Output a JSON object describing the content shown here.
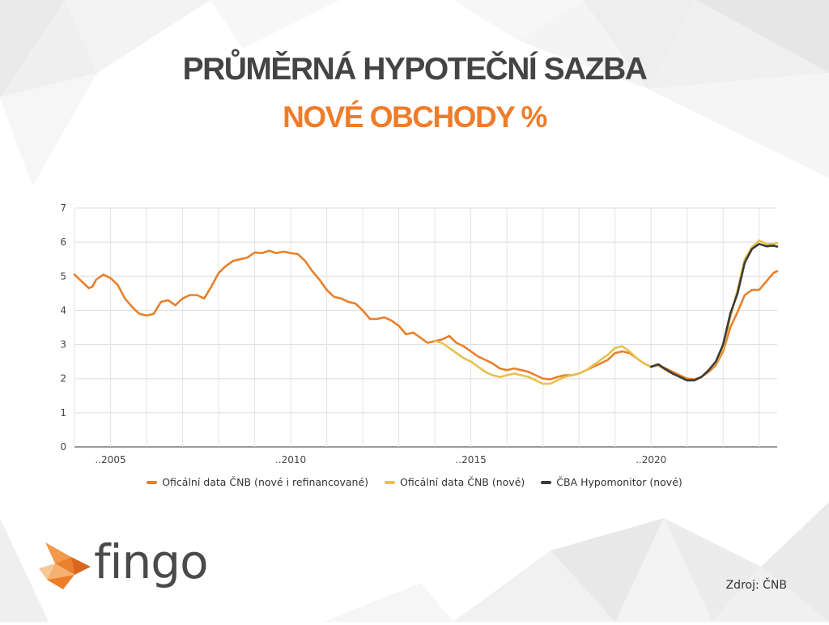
{
  "title_line1": "PRŮMĚRNÁ HYPOTEČNÍ SAZBA",
  "title_line2": "NOVÉ OBCHODY  %",
  "source": "Zdroj: ČNB",
  "logo_text": "fingo",
  "colors": {
    "title_dark": "#444444",
    "accent_orange": "#ee7d2b",
    "series_orange": "#e8802c",
    "series_yellow": "#e6c24a",
    "series_dark": "#3a3a3a"
  },
  "chart_data": {
    "type": "line",
    "title": "",
    "xlabel": "",
    "ylabel": "",
    "x_ticks": [
      2005,
      2010,
      2015,
      2020
    ],
    "x_tick_labels": [
      "..2005",
      "..2010",
      "..2015",
      "..2020"
    ],
    "y_ticks": [
      0,
      1,
      2,
      3,
      4,
      5,
      6,
      7
    ],
    "xlim": [
      2004.0,
      2023.5
    ],
    "ylim": [
      0,
      7
    ],
    "grid": true,
    "legend_position": "bottom",
    "series": [
      {
        "name": "Oficální data ČNB (nové i refinancované)",
        "color": "#e8802c",
        "points": [
          [
            2004.0,
            5.05
          ],
          [
            2004.2,
            4.85
          ],
          [
            2004.4,
            4.65
          ],
          [
            2004.5,
            4.7
          ],
          [
            2004.6,
            4.9
          ],
          [
            2004.8,
            5.05
          ],
          [
            2005.0,
            4.95
          ],
          [
            2005.2,
            4.75
          ],
          [
            2005.4,
            4.35
          ],
          [
            2005.6,
            4.1
          ],
          [
            2005.8,
            3.9
          ],
          [
            2006.0,
            3.85
          ],
          [
            2006.2,
            3.9
          ],
          [
            2006.4,
            4.25
          ],
          [
            2006.6,
            4.3
          ],
          [
            2006.8,
            4.15
          ],
          [
            2007.0,
            4.35
          ],
          [
            2007.2,
            4.45
          ],
          [
            2007.4,
            4.45
          ],
          [
            2007.6,
            4.35
          ],
          [
            2007.8,
            4.7
          ],
          [
            2008.0,
            5.1
          ],
          [
            2008.2,
            5.3
          ],
          [
            2008.4,
            5.45
          ],
          [
            2008.6,
            5.5
          ],
          [
            2008.8,
            5.55
          ],
          [
            2009.0,
            5.7
          ],
          [
            2009.2,
            5.68
          ],
          [
            2009.4,
            5.75
          ],
          [
            2009.6,
            5.68
          ],
          [
            2009.8,
            5.72
          ],
          [
            2010.0,
            5.68
          ],
          [
            2010.2,
            5.65
          ],
          [
            2010.4,
            5.45
          ],
          [
            2010.6,
            5.15
          ],
          [
            2010.8,
            4.9
          ],
          [
            2011.0,
            4.6
          ],
          [
            2011.2,
            4.4
          ],
          [
            2011.4,
            4.35
          ],
          [
            2011.6,
            4.25
          ],
          [
            2011.8,
            4.2
          ],
          [
            2012.0,
            4.0
          ],
          [
            2012.2,
            3.75
          ],
          [
            2012.4,
            3.75
          ],
          [
            2012.6,
            3.8
          ],
          [
            2012.8,
            3.7
          ],
          [
            2013.0,
            3.55
          ],
          [
            2013.2,
            3.3
          ],
          [
            2013.4,
            3.35
          ],
          [
            2013.6,
            3.2
          ],
          [
            2013.8,
            3.05
          ],
          [
            2014.0,
            3.1
          ],
          [
            2014.2,
            3.15
          ],
          [
            2014.4,
            3.25
          ],
          [
            2014.6,
            3.05
          ],
          [
            2014.8,
            2.95
          ],
          [
            2015.0,
            2.8
          ],
          [
            2015.2,
            2.65
          ],
          [
            2015.4,
            2.55
          ],
          [
            2015.6,
            2.45
          ],
          [
            2015.8,
            2.3
          ],
          [
            2016.0,
            2.25
          ],
          [
            2016.2,
            2.3
          ],
          [
            2016.4,
            2.25
          ],
          [
            2016.6,
            2.2
          ],
          [
            2016.8,
            2.1
          ],
          [
            2017.0,
            2.0
          ],
          [
            2017.2,
            1.98
          ],
          [
            2017.4,
            2.05
          ],
          [
            2017.6,
            2.1
          ],
          [
            2017.8,
            2.1
          ],
          [
            2018.0,
            2.15
          ],
          [
            2018.2,
            2.25
          ],
          [
            2018.4,
            2.35
          ],
          [
            2018.6,
            2.45
          ],
          [
            2018.8,
            2.55
          ],
          [
            2019.0,
            2.75
          ],
          [
            2019.2,
            2.8
          ],
          [
            2019.4,
            2.75
          ],
          [
            2019.6,
            2.6
          ],
          [
            2019.8,
            2.45
          ],
          [
            2020.0,
            2.35
          ],
          [
            2020.2,
            2.4
          ],
          [
            2020.4,
            2.3
          ],
          [
            2020.6,
            2.2
          ],
          [
            2020.8,
            2.1
          ],
          [
            2021.0,
            2.0
          ],
          [
            2021.2,
            1.98
          ],
          [
            2021.4,
            2.05
          ],
          [
            2021.6,
            2.2
          ],
          [
            2021.8,
            2.4
          ],
          [
            2022.0,
            2.8
          ],
          [
            2022.2,
            3.5
          ],
          [
            2022.4,
            3.95
          ],
          [
            2022.6,
            4.45
          ],
          [
            2022.8,
            4.6
          ],
          [
            2023.0,
            4.6
          ],
          [
            2023.2,
            4.85
          ],
          [
            2023.4,
            5.1
          ],
          [
            2023.5,
            5.15
          ]
        ]
      },
      {
        "name": "Oficální data ČNB (nové)",
        "color": "#e6c24a",
        "points": [
          [
            2014.0,
            3.1
          ],
          [
            2014.2,
            3.05
          ],
          [
            2014.4,
            2.9
          ],
          [
            2014.6,
            2.75
          ],
          [
            2014.8,
            2.6
          ],
          [
            2015.0,
            2.5
          ],
          [
            2015.2,
            2.35
          ],
          [
            2015.4,
            2.2
          ],
          [
            2015.6,
            2.1
          ],
          [
            2015.8,
            2.05
          ],
          [
            2016.0,
            2.1
          ],
          [
            2016.2,
            2.15
          ],
          [
            2016.4,
            2.1
          ],
          [
            2016.6,
            2.05
          ],
          [
            2016.8,
            1.95
          ],
          [
            2017.0,
            1.85
          ],
          [
            2017.2,
            1.85
          ],
          [
            2017.4,
            1.95
          ],
          [
            2017.6,
            2.05
          ],
          [
            2017.8,
            2.1
          ],
          [
            2018.0,
            2.15
          ],
          [
            2018.2,
            2.25
          ],
          [
            2018.4,
            2.4
          ],
          [
            2018.6,
            2.55
          ],
          [
            2018.8,
            2.7
          ],
          [
            2019.0,
            2.9
          ],
          [
            2019.2,
            2.95
          ],
          [
            2019.4,
            2.8
          ],
          [
            2019.6,
            2.6
          ],
          [
            2019.8,
            2.45
          ],
          [
            2020.0,
            2.35
          ],
          [
            2020.2,
            2.38
          ],
          [
            2020.4,
            2.25
          ],
          [
            2020.6,
            2.15
          ],
          [
            2020.8,
            2.05
          ],
          [
            2021.0,
            1.95
          ],
          [
            2021.2,
            1.95
          ],
          [
            2021.4,
            2.05
          ],
          [
            2021.6,
            2.25
          ],
          [
            2021.8,
            2.45
          ],
          [
            2022.0,
            2.9
          ],
          [
            2022.2,
            3.8
          ],
          [
            2022.4,
            4.6
          ],
          [
            2022.6,
            5.5
          ],
          [
            2022.8,
            5.85
          ],
          [
            2023.0,
            6.05
          ],
          [
            2023.2,
            5.95
          ],
          [
            2023.4,
            5.95
          ],
          [
            2023.5,
            5.98
          ]
        ]
      },
      {
        "name": "ČBA Hypomonitor (nové)",
        "color": "#3a3a3a",
        "points": [
          [
            2020.0,
            2.35
          ],
          [
            2020.2,
            2.42
          ],
          [
            2020.4,
            2.28
          ],
          [
            2020.6,
            2.15
          ],
          [
            2020.8,
            2.05
          ],
          [
            2021.0,
            1.95
          ],
          [
            2021.2,
            1.95
          ],
          [
            2021.4,
            2.05
          ],
          [
            2021.6,
            2.25
          ],
          [
            2021.8,
            2.5
          ],
          [
            2022.0,
            3.0
          ],
          [
            2022.2,
            3.9
          ],
          [
            2022.4,
            4.5
          ],
          [
            2022.6,
            5.4
          ],
          [
            2022.8,
            5.8
          ],
          [
            2023.0,
            5.95
          ],
          [
            2023.2,
            5.88
          ],
          [
            2023.4,
            5.9
          ],
          [
            2023.5,
            5.87
          ]
        ]
      }
    ]
  }
}
